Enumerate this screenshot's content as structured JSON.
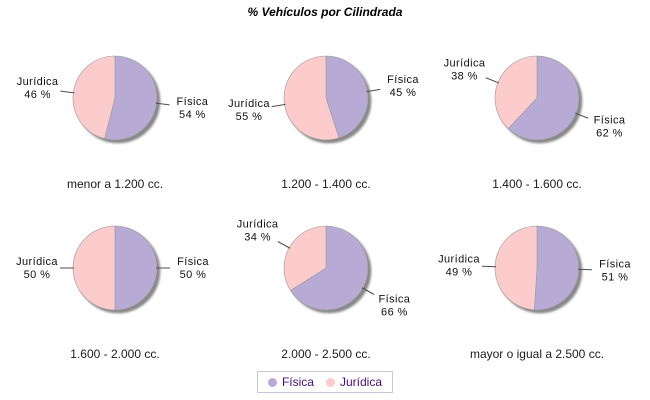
{
  "chart_data": {
    "type": "pie",
    "title": "% Vehículos por Cilindrada",
    "layout": {
      "rows": 2,
      "cols": 3,
      "legend_position": "bottom",
      "grid": "off"
    },
    "categories": [
      "menor a 1.200 cc.",
      "1.200 - 1.400 cc.",
      "1.400 - 1.600 cc.",
      "1.600 - 2.000 cc.",
      "2.000 - 2.500 cc.",
      "mayor o igual a 2.500 cc."
    ],
    "series": [
      {
        "name": "Física",
        "color": "#b7abd6",
        "values": [
          54,
          45,
          62,
          50,
          66,
          51
        ]
      },
      {
        "name": "Jurídica",
        "color": "#fccbcb",
        "values": [
          46,
          55,
          38,
          50,
          34,
          49
        ]
      }
    ],
    "value_suffix": " %",
    "styles": {
      "shadow_color": "#737373",
      "outline_color": "#9a9a9a",
      "label_color": "#111111",
      "caption_color": "#1c1c1c",
      "legend_text_color": "#4b0b82",
      "legend_border_color": "#c9c6d6",
      "background_color": "#ffffff"
    }
  }
}
